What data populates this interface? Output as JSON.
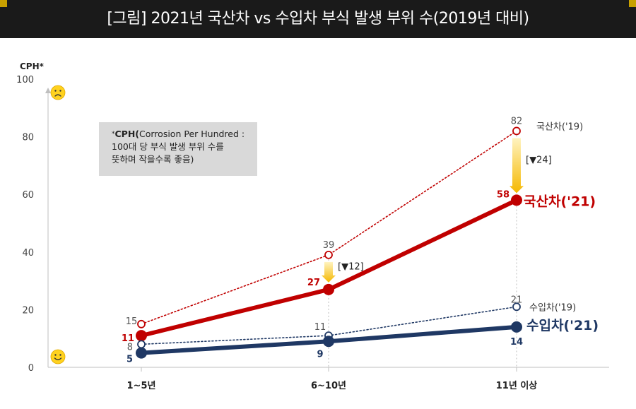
{
  "title": "[그림] 2021년 국산차 vs 수입차 부식 발생 부위 수(2019년 대비)",
  "note": {
    "star": "*",
    "bold": "CPH(",
    "line1_rest": "Corrosion Per Hundred :",
    "line2": "100대 당 부식 발생 부위 수를",
    "line3": "뜻하며 작을수록 좋음)"
  },
  "colors": {
    "domestic": "#c00000",
    "imported": "#1f3864",
    "arrow": "#f5b800",
    "note_bg": "#d9d9d9"
  },
  "icons": {
    "bad": "frowning-face-icon",
    "good": "smiling-face-icon"
  },
  "chart_data": {
    "type": "line",
    "ylabel": "CPH*",
    "ylim": [
      0,
      100
    ],
    "yticks": [
      "0",
      "20",
      "40",
      "60",
      "80",
      "100"
    ],
    "categories": [
      "1~5년",
      "6~10년",
      "11년 이상"
    ],
    "series": [
      {
        "name": "국산차('19)",
        "values": [
          15,
          39,
          82
        ],
        "labels": [
          "15",
          "39",
          "82"
        ],
        "style": "dotted",
        "color": "#c00000"
      },
      {
        "name": "국산차('21)",
        "values": [
          11,
          27,
          58
        ],
        "labels": [
          "11",
          "27",
          "58"
        ],
        "style": "solid",
        "color": "#c00000"
      },
      {
        "name": "수입차('19)",
        "values": [
          8,
          11,
          21
        ],
        "labels": [
          "8",
          "11",
          "21"
        ],
        "style": "dotted",
        "color": "#1f3864"
      },
      {
        "name": "수입차('21)",
        "values": [
          5,
          9,
          14
        ],
        "labels": [
          "5",
          "9",
          "14"
        ],
        "style": "solid",
        "color": "#1f3864"
      }
    ],
    "annotations": [
      {
        "text": "[▼12]",
        "category": "6~10년",
        "from": 39,
        "to": 27
      },
      {
        "text": "[▼24]",
        "category": "11년 이상",
        "from": 82,
        "to": 58
      }
    ]
  }
}
